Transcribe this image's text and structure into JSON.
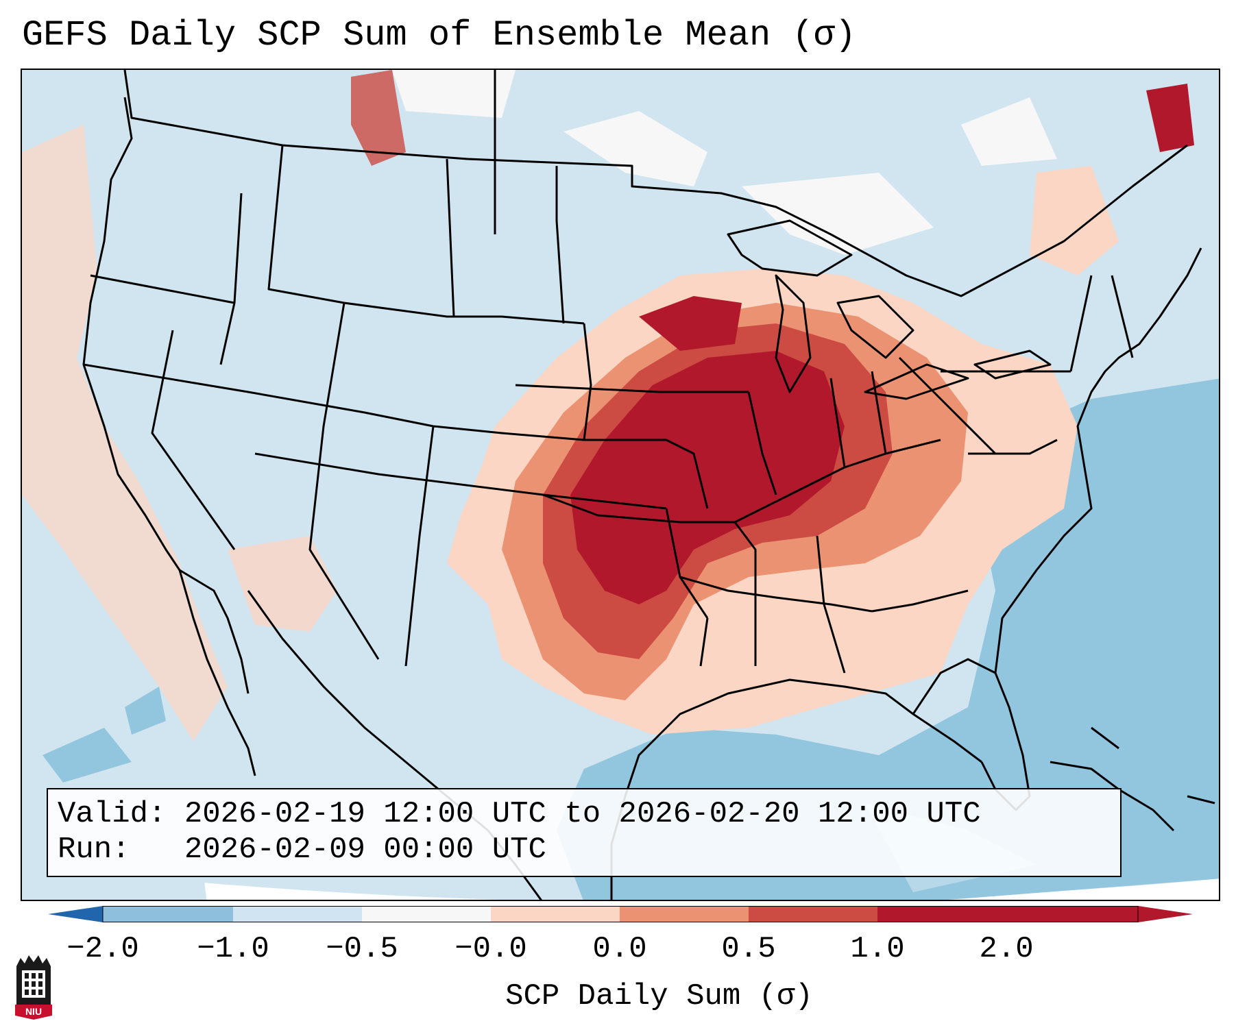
{
  "title": "GEFS Daily SCP Sum of Ensemble Mean (σ)",
  "info_box": {
    "valid_label": "Valid:",
    "valid_value": "2026-02-19 12:00 UTC to 2026-02-20 12:00 UTC",
    "run_label": "Run:",
    "run_value": "2026-02-09 00:00 UTC"
  },
  "colorbar": {
    "label": "SCP Daily Sum (σ)",
    "ticks": [
      "−2.0",
      "−1.0",
      "−0.5",
      "−0.0",
      "0.0",
      "0.5",
      "1.0",
      "2.0"
    ],
    "colors": [
      "#2f74b6",
      "#8ec0de",
      "#d0e4f1",
      "#f7f7f7",
      "#fbd6c4",
      "#eb9272",
      "#cc4b42",
      "#b2182b"
    ],
    "extend_low_color": "#2166ac",
    "extend_high_color": "#b2182b"
  },
  "legend": {
    "bins": [
      {
        "range": "< −2.0",
        "color": "#2166ac"
      },
      {
        "range": "−2.0 to −1.0",
        "color": "#2f74b6"
      },
      {
        "range": "−1.0 to −0.5",
        "color": "#8ec0de"
      },
      {
        "range": "−0.5 to −0.0",
        "color": "#d0e4f1"
      },
      {
        "range": "−0.0 to 0.0",
        "color": "#f7f7f7"
      },
      {
        "range": "0.0 to 0.5",
        "color": "#fbd6c4"
      },
      {
        "range": "0.5 to 1.0",
        "color": "#eb9272"
      },
      {
        "range": "1.0 to 2.0",
        "color": "#cc4b42"
      },
      {
        "range": "> 2.0",
        "color": "#b2182b"
      }
    ]
  },
  "logo": {
    "text": "NIU"
  }
}
